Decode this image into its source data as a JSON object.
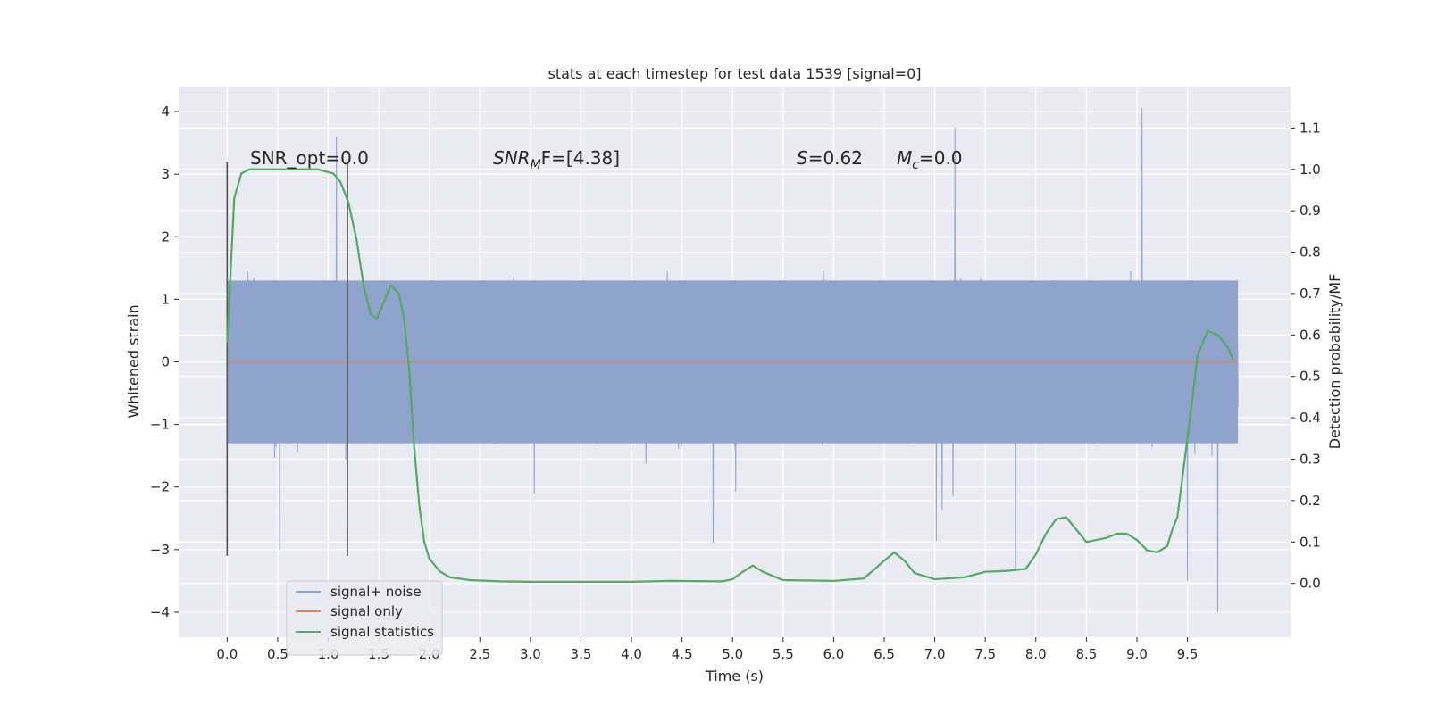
{
  "chart_data": {
    "type": "line",
    "title": "stats at each timestep for test data 1539 [signal=0]",
    "xlabel": "Time (s)",
    "ylabel": "Whitened strain",
    "y2label": "Detection probability/MF",
    "xlim": [
      -0.48,
      10.52
    ],
    "ylim": [
      -4.4,
      4.4
    ],
    "y2lim": [
      -0.13,
      1.2
    ],
    "xticks": [
      "0.0",
      "0.5",
      "1.0",
      "1.5",
      "2.0",
      "2.5",
      "3.0",
      "3.5",
      "4.0",
      "4.5",
      "5.0",
      "5.5",
      "6.0",
      "6.5",
      "7.0",
      "7.5",
      "8.0",
      "8.5",
      "9.0",
      "9.5"
    ],
    "yticks": [
      "4",
      "3",
      "2",
      "1",
      "0",
      "−1",
      "−2",
      "−3",
      "−4"
    ],
    "y2ticks": [
      "1.1",
      "1.0",
      "0.9",
      "0.8",
      "0.7",
      "0.6",
      "0.5",
      "0.4",
      "0.3",
      "0.2",
      "0.1",
      "0.0"
    ],
    "grid": true,
    "legend_position": "lower-left",
    "annotations": {
      "snr_opt": "SNR_opt=0.0",
      "snr_mf_base": "SNR",
      "snr_mf_sub": "M",
      "snr_mf_rest": "F=[4.38]",
      "s_base": "S",
      "s_rest": "=0.62",
      "mc_base": "M",
      "mc_sub": "c",
      "mc_rest": "=0.0"
    },
    "vlines_x": [
      0.0,
      1.19
    ],
    "vlines_range": [
      -3.1,
      3.2
    ],
    "series": [
      {
        "name": "signal+ noise",
        "color": "#8fa3cc",
        "x_range": [
          0.0,
          10.0
        ],
        "typical_band": [
          -1.3,
          1.3
        ],
        "extremes": [
          [
            1.08,
            3.6
          ],
          [
            7.2,
            3.75
          ],
          [
            9.05,
            4.05
          ],
          [
            9.5,
            -3.5
          ],
          [
            9.8,
            -4.0
          ],
          [
            7.8,
            -3.3
          ],
          [
            1.19,
            -2.75
          ],
          [
            0.52,
            -3.0
          ]
        ]
      },
      {
        "name": "signal only",
        "color": "#dd8452",
        "x": [
          0.0,
          10.0
        ],
        "y": [
          0.0,
          0.0
        ]
      },
      {
        "name": "signal statistics",
        "color": "#55a868",
        "axis": "right",
        "x": [
          0.0,
          0.07,
          0.14,
          0.22,
          0.35,
          0.5,
          0.7,
          0.9,
          1.05,
          1.12,
          1.2,
          1.28,
          1.35,
          1.42,
          1.48,
          1.55,
          1.62,
          1.7,
          1.75,
          1.8,
          1.85,
          1.9,
          1.95,
          2.0,
          2.1,
          2.2,
          2.4,
          2.7,
          3.0,
          3.5,
          4.0,
          4.4,
          4.9,
          5.0,
          5.1,
          5.2,
          5.3,
          5.5,
          6.0,
          6.3,
          6.5,
          6.6,
          6.7,
          6.8,
          7.0,
          7.3,
          7.5,
          7.7,
          7.9,
          8.0,
          8.1,
          8.2,
          8.3,
          8.4,
          8.5,
          8.7,
          8.8,
          8.9,
          9.0,
          9.1,
          9.2,
          9.3,
          9.35,
          9.4,
          9.5,
          9.6,
          9.7,
          9.8,
          9.9,
          9.95
        ],
        "y": [
          0.58,
          0.93,
          0.99,
          1.0,
          1.0,
          1.0,
          1.0,
          1.0,
          0.99,
          0.97,
          0.92,
          0.83,
          0.72,
          0.65,
          0.64,
          0.68,
          0.72,
          0.7,
          0.64,
          0.52,
          0.33,
          0.19,
          0.1,
          0.06,
          0.03,
          0.015,
          0.008,
          0.005,
          0.004,
          0.004,
          0.004,
          0.006,
          0.005,
          0.01,
          0.028,
          0.043,
          0.028,
          0.008,
          0.006,
          0.012,
          0.055,
          0.075,
          0.055,
          0.025,
          0.01,
          0.015,
          0.028,
          0.03,
          0.035,
          0.07,
          0.12,
          0.155,
          0.16,
          0.13,
          0.1,
          0.11,
          0.12,
          0.12,
          0.105,
          0.08,
          0.075,
          0.09,
          0.13,
          0.16,
          0.35,
          0.55,
          0.61,
          0.6,
          0.57,
          0.54
        ]
      }
    ]
  }
}
